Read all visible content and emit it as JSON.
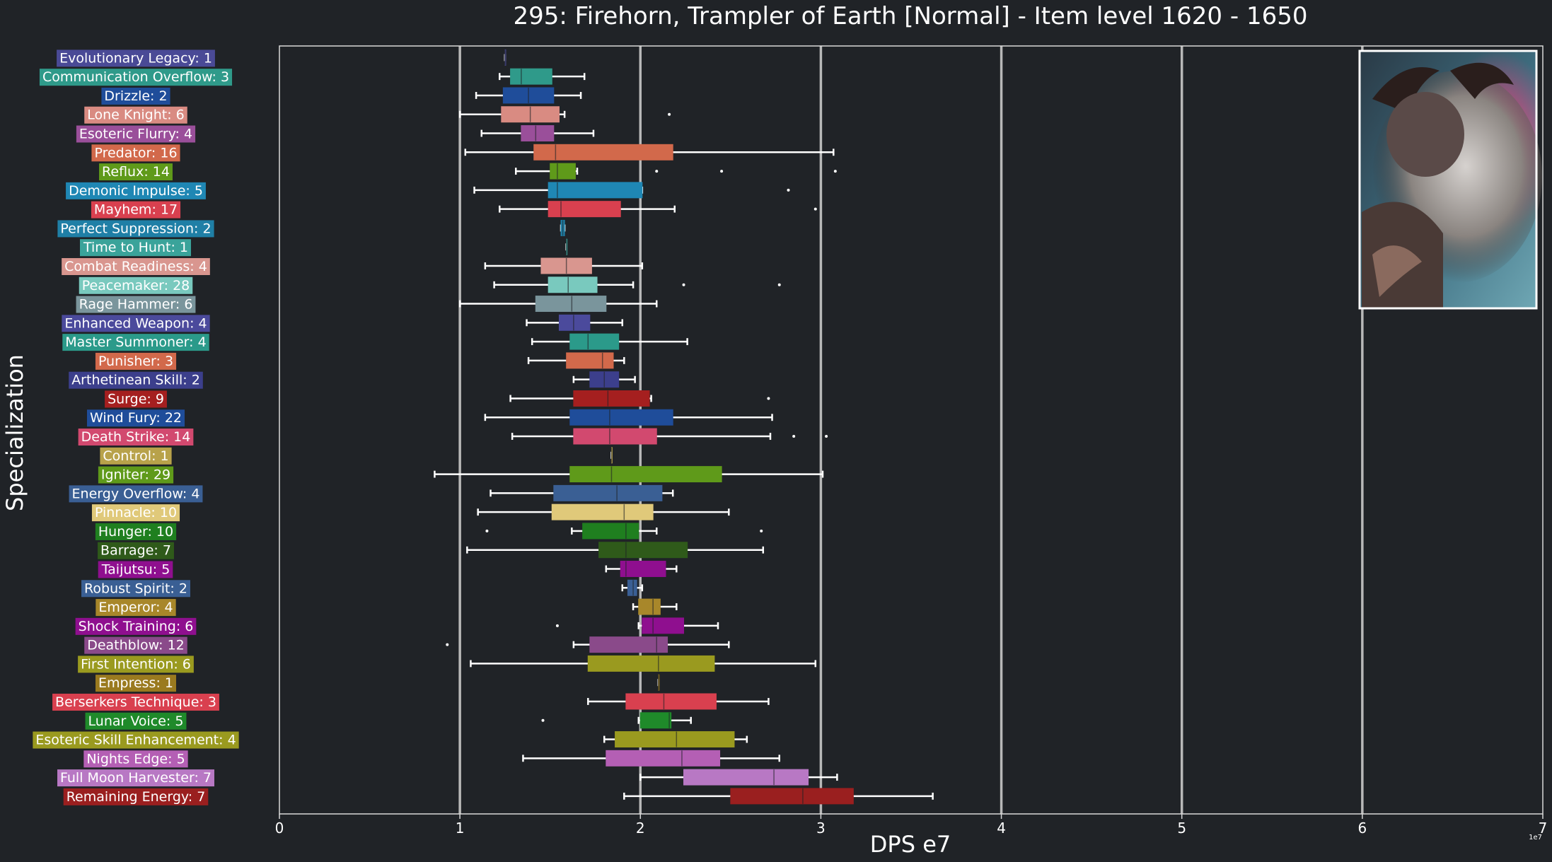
{
  "chart_data": {
    "type": "box",
    "title": "295: Firehorn, Trampler of Earth [Normal] - Item level 1620 - 1650",
    "xlabel": "DPS e7",
    "ylabel": "Specialization",
    "x_offset_label": "1e7",
    "xlim": [
      0,
      7
    ],
    "xticks": [
      "0",
      "1",
      "2",
      "3",
      "4",
      "5",
      "6",
      "7"
    ],
    "grid": "vertical lines at major x ticks",
    "image_placement": "top-right",
    "series": [
      {
        "label": "Evolutionary Legacy: 1",
        "color": "#4a4a96",
        "whislo": 1.25,
        "q1": 1.25,
        "med": 1.25,
        "q3": 1.25,
        "whishi": 1.25,
        "fliers": []
      },
      {
        "label": "Communication Overflow: 3",
        "color": "#2f9a8a",
        "whislo": 1.22,
        "q1": 1.28,
        "med": 1.34,
        "q3": 1.51,
        "whishi": 1.69,
        "fliers": []
      },
      {
        "label": "Drizzle: 2",
        "color": "#1f4d9a",
        "whislo": 1.09,
        "q1": 1.24,
        "med": 1.38,
        "q3": 1.52,
        "whishi": 1.67,
        "fliers": []
      },
      {
        "label": "Lone Knight: 6",
        "color": "#d98b82",
        "whislo": 1.0,
        "q1": 1.23,
        "med": 1.39,
        "q3": 1.55,
        "whishi": 1.58,
        "fliers": [
          2.16
        ]
      },
      {
        "label": "Esoteric Flurry: 4",
        "color": "#9a4f9a",
        "whislo": 1.12,
        "q1": 1.34,
        "med": 1.42,
        "q3": 1.52,
        "whishi": 1.74,
        "fliers": []
      },
      {
        "label": "Predator: 16",
        "color": "#d2694b",
        "whislo": 1.03,
        "q1": 1.41,
        "med": 1.53,
        "q3": 2.18,
        "whishi": 3.07,
        "fliers": []
      },
      {
        "label": "Reflux: 14",
        "color": "#5f9a1a",
        "whislo": 1.31,
        "q1": 1.5,
        "med": 1.54,
        "q3": 1.64,
        "whishi": 1.65,
        "fliers": [
          2.09,
          2.45,
          3.08
        ]
      },
      {
        "label": "Demonic Impulse: 5",
        "color": "#1f87b4",
        "whislo": 1.08,
        "q1": 1.49,
        "med": 1.54,
        "q3": 2.01,
        "whishi": 2.01,
        "fliers": [
          2.82
        ]
      },
      {
        "label": "Mayhem: 17",
        "color": "#d9404f",
        "whislo": 1.22,
        "q1": 1.49,
        "med": 1.56,
        "q3": 1.89,
        "whishi": 2.19,
        "fliers": [
          2.97
        ]
      },
      {
        "label": "Perfect Suppression: 2",
        "color": "#1f7fa6",
        "whislo": 1.56,
        "q1": 1.56,
        "med": 1.57,
        "q3": 1.58,
        "whishi": 1.58,
        "fliers": []
      },
      {
        "label": "Time to Hunt: 1",
        "color": "#3aa39a",
        "whislo": 1.59,
        "q1": 1.59,
        "med": 1.59,
        "q3": 1.59,
        "whishi": 1.59,
        "fliers": []
      },
      {
        "label": "Combat Readiness: 4",
        "color": "#d9968f",
        "whislo": 1.14,
        "q1": 1.45,
        "med": 1.59,
        "q3": 1.73,
        "whishi": 2.01,
        "fliers": []
      },
      {
        "label": "Peacemaker: 28",
        "color": "#79c9be",
        "whislo": 1.19,
        "q1": 1.49,
        "med": 1.6,
        "q3": 1.76,
        "whishi": 1.96,
        "fliers": [
          2.24,
          2.77
        ]
      },
      {
        "label": "Rage Hammer: 6",
        "color": "#7a959c",
        "whislo": 1.0,
        "q1": 1.42,
        "med": 1.62,
        "q3": 1.81,
        "whishi": 2.09,
        "fliers": []
      },
      {
        "label": "Enhanced Weapon: 4",
        "color": "#4b4a9c",
        "whislo": 1.37,
        "q1": 1.55,
        "med": 1.63,
        "q3": 1.72,
        "whishi": 1.9,
        "fliers": []
      },
      {
        "label": "Master Summoner: 4",
        "color": "#2b9a8a",
        "whislo": 1.4,
        "q1": 1.61,
        "med": 1.71,
        "q3": 1.88,
        "whishi": 2.26,
        "fliers": []
      },
      {
        "label": "Punisher: 3",
        "color": "#d2694b",
        "whislo": 1.38,
        "q1": 1.59,
        "med": 1.79,
        "q3": 1.85,
        "whishi": 1.91,
        "fliers": []
      },
      {
        "label": "Arthetinean Skill: 2",
        "color": "#3c3f8c",
        "whislo": 1.63,
        "q1": 1.72,
        "med": 1.8,
        "q3": 1.88,
        "whishi": 1.97,
        "fliers": []
      },
      {
        "label": "Surge: 9",
        "color": "#a51f1f",
        "whislo": 1.28,
        "q1": 1.63,
        "med": 1.82,
        "q3": 2.05,
        "whishi": 2.06,
        "fliers": [
          2.71
        ]
      },
      {
        "label": "Wind Fury: 22",
        "color": "#1f4d9a",
        "whislo": 1.14,
        "q1": 1.61,
        "med": 1.83,
        "q3": 2.18,
        "whishi": 2.73,
        "fliers": []
      },
      {
        "label": "Death Strike: 14",
        "color": "#d2496f",
        "whislo": 1.29,
        "q1": 1.63,
        "med": 1.83,
        "q3": 2.09,
        "whishi": 2.72,
        "fliers": [
          2.85,
          3.03
        ]
      },
      {
        "label": "Control: 1",
        "color": "#b8a24a",
        "whislo": 1.84,
        "q1": 1.84,
        "med": 1.84,
        "q3": 1.84,
        "whishi": 1.84,
        "fliers": []
      },
      {
        "label": "Igniter: 29",
        "color": "#5f9a1a",
        "whislo": 0.86,
        "q1": 1.61,
        "med": 1.84,
        "q3": 2.45,
        "whishi": 3.01,
        "fliers": []
      },
      {
        "label": "Energy Overflow: 4",
        "color": "#3a5f94",
        "whislo": 1.17,
        "q1": 1.52,
        "med": 1.87,
        "q3": 2.12,
        "whishi": 2.18,
        "fliers": []
      },
      {
        "label": "Pinnacle: 10",
        "color": "#e0c97a",
        "whislo": 1.1,
        "q1": 1.51,
        "med": 1.91,
        "q3": 2.07,
        "whishi": 2.49,
        "fliers": []
      },
      {
        "label": "Hunger: 10",
        "color": "#1f7f1f",
        "whislo": 1.62,
        "q1": 1.68,
        "med": 1.92,
        "q3": 1.99,
        "whishi": 2.09,
        "fliers": [
          1.15,
          2.67
        ]
      },
      {
        "label": "Barrage: 7",
        "color": "#2f5a1a",
        "whislo": 1.04,
        "q1": 1.77,
        "med": 1.92,
        "q3": 2.26,
        "whishi": 2.68,
        "fliers": []
      },
      {
        "label": "Taijutsu: 5",
        "color": "#8f0f8f",
        "whislo": 1.81,
        "q1": 1.89,
        "med": 1.92,
        "q3": 2.14,
        "whishi": 2.2,
        "fliers": []
      },
      {
        "label": "Robust Spirit: 2",
        "color": "#3a5f94",
        "whislo": 1.9,
        "q1": 1.93,
        "med": 1.96,
        "q3": 1.98,
        "whishi": 2.01,
        "fliers": []
      },
      {
        "label": "Emperor: 4",
        "color": "#a8872a",
        "whislo": 1.96,
        "q1": 1.99,
        "med": 2.07,
        "q3": 2.11,
        "whishi": 2.2,
        "fliers": []
      },
      {
        "label": "Shock Training: 6",
        "color": "#8f0f8f",
        "whislo": 1.99,
        "q1": 2.01,
        "med": 2.07,
        "q3": 2.24,
        "whishi": 2.43,
        "fliers": [
          1.54
        ]
      },
      {
        "label": "Deathblow: 12",
        "color": "#8a4a8a",
        "whislo": 1.63,
        "q1": 1.72,
        "med": 2.09,
        "q3": 2.15,
        "whishi": 2.49,
        "fliers": [
          0.93
        ]
      },
      {
        "label": "First Intention: 6",
        "color": "#9a9a1f",
        "whislo": 1.06,
        "q1": 1.71,
        "med": 2.1,
        "q3": 2.41,
        "whishi": 2.97,
        "fliers": []
      },
      {
        "label": "Empress: 1",
        "color": "#9a7a1f",
        "whislo": 2.1,
        "q1": 2.1,
        "med": 2.1,
        "q3": 2.1,
        "whishi": 2.1,
        "fliers": []
      },
      {
        "label": "Berserkers Technique: 3",
        "color": "#d9404f",
        "whislo": 1.71,
        "q1": 1.92,
        "med": 2.13,
        "q3": 2.42,
        "whishi": 2.71,
        "fliers": []
      },
      {
        "label": "Lunar Voice: 5",
        "color": "#1f8a2a",
        "whislo": 1.99,
        "q1": 2.0,
        "med": 2.16,
        "q3": 2.17,
        "whishi": 2.28,
        "fliers": [
          1.46
        ]
      },
      {
        "label": "Esoteric Skill Enhancement: 4",
        "color": "#9a9a1f",
        "whislo": 1.8,
        "q1": 1.86,
        "med": 2.2,
        "q3": 2.52,
        "whishi": 2.59,
        "fliers": []
      },
      {
        "label": "Nights Edge: 5",
        "color": "#b45fb4",
        "whislo": 1.35,
        "q1": 1.81,
        "med": 2.23,
        "q3": 2.44,
        "whishi": 2.77,
        "fliers": []
      },
      {
        "label": "Full Moon Harvester: 7",
        "color": "#b878c4",
        "whislo": 2.0,
        "q1": 2.24,
        "med": 2.74,
        "q3": 2.93,
        "whishi": 3.09,
        "fliers": []
      },
      {
        "label": "Remaining Energy: 7",
        "color": "#9a1f1f",
        "whislo": 1.91,
        "q1": 2.5,
        "med": 2.9,
        "q3": 3.18,
        "whishi": 3.62,
        "fliers": []
      }
    ]
  }
}
